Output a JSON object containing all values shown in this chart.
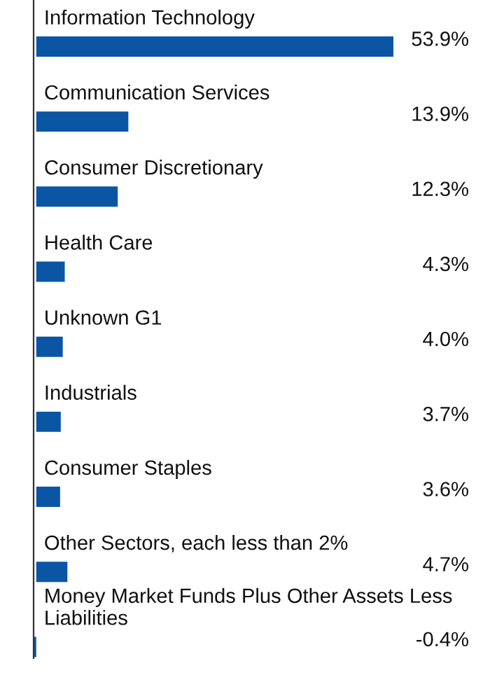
{
  "chart_data": {
    "type": "bar",
    "orientation": "horizontal",
    "categories": [
      "Information Technology",
      "Communication Services",
      "Consumer Discretionary",
      "Health Care",
      "Unknown G1",
      "Industrials",
      "Consumer Staples",
      "Other Sectors, each less than 2%",
      "Money Market Funds Plus Other Assets Less Liabilities"
    ],
    "values": [
      53.9,
      13.9,
      12.3,
      4.3,
      4.0,
      3.7,
      3.6,
      4.7,
      -0.4
    ],
    "value_labels": [
      "53.9%",
      "13.9%",
      "12.3%",
      "4.3%",
      "4.0%",
      "3.7%",
      "3.6%",
      "4.7%",
      "-0.4%"
    ],
    "color": "#0a56a5"
  }
}
